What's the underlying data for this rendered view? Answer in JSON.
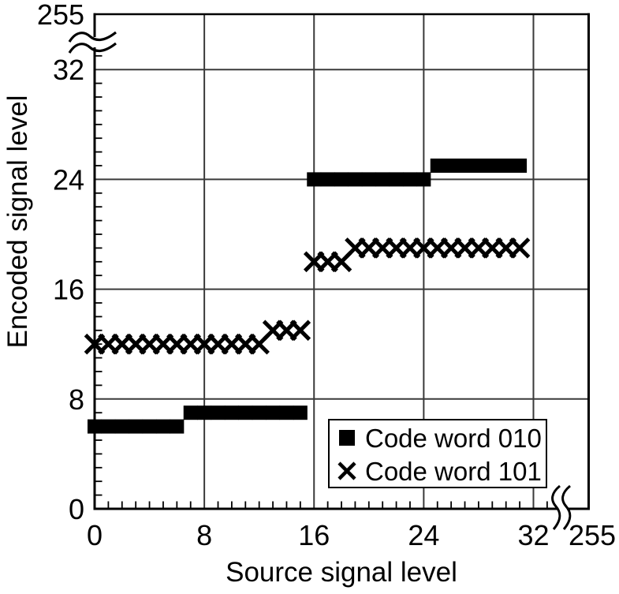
{
  "figure": {
    "background_color": "#ffffff",
    "grid_color": "#3a3a3a",
    "axis_color": "#000000"
  },
  "chart_data": {
    "type": "scatter",
    "title": "",
    "xlabel": "Source signal level",
    "ylabel": "Encoded signal level",
    "grid": true,
    "legend_position": "inside-lower-right",
    "x_axis": {
      "tick_labels": [
        0,
        8,
        16,
        24,
        32
      ],
      "minor_tick_step": 1,
      "axis_break_after": 32,
      "break_label": "255",
      "range_shown": [
        0,
        32
      ]
    },
    "y_axis": {
      "tick_labels": [
        0,
        8,
        16,
        24,
        32
      ],
      "minor_tick_step": 1,
      "axis_break_after": 32,
      "break_label": "255",
      "range_shown": [
        0,
        32
      ]
    },
    "series": [
      {
        "name": "Code word 010",
        "marker": "filled-square",
        "color": "#000000",
        "x": [
          0,
          1,
          2,
          3,
          4,
          5,
          6,
          7,
          8,
          9,
          10,
          11,
          12,
          13,
          14,
          15,
          16,
          17,
          18,
          19,
          20,
          21,
          22,
          23,
          24,
          25,
          26,
          27,
          28,
          29,
          30,
          31
        ],
        "y": [
          6,
          6,
          6,
          6,
          6,
          6,
          6,
          7,
          7,
          7,
          7,
          7,
          7,
          7,
          7,
          7,
          24,
          24,
          24,
          24,
          24,
          24,
          24,
          24,
          24,
          25,
          25,
          25,
          25,
          25,
          25,
          25
        ]
      },
      {
        "name": "Code word 101",
        "marker": "x-cross",
        "color": "#000000",
        "x": [
          0,
          1,
          2,
          3,
          4,
          5,
          6,
          7,
          8,
          9,
          10,
          11,
          12,
          13,
          14,
          15,
          16,
          17,
          18,
          19,
          20,
          21,
          22,
          23,
          24,
          25,
          26,
          27,
          28,
          29,
          30,
          31
        ],
        "y": [
          12,
          12,
          12,
          12,
          12,
          12,
          12,
          12,
          12,
          12,
          12,
          12,
          12,
          13,
          13,
          13,
          18,
          18,
          18,
          19,
          19,
          19,
          19,
          19,
          19,
          19,
          19,
          19,
          19,
          19,
          19,
          19
        ]
      }
    ]
  }
}
